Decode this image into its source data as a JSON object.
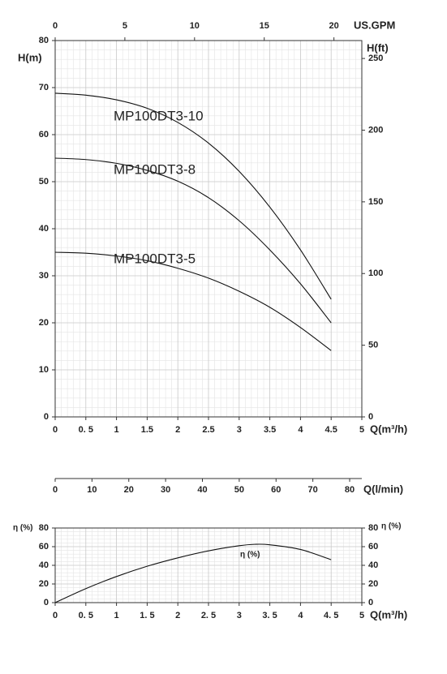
{
  "chart_data": [
    {
      "type": "line",
      "xlabel": "Q(m³/h)",
      "ylabel": "H(m)",
      "y2label": "H(ft)",
      "xlim": [
        0,
        5
      ],
      "xticks": [
        0,
        {
          "value": 0.5,
          "label": "0. 5"
        },
        1,
        1.5,
        2,
        2.5,
        3,
        3.5,
        4,
        4.5,
        5
      ],
      "ylim": [
        0,
        80
      ],
      "yticks": [
        0,
        10,
        20,
        30,
        40,
        50,
        60,
        70,
        80
      ],
      "y2lim": [
        0,
        262.5
      ],
      "y2ticks": [
        0,
        50,
        100,
        150,
        200,
        250
      ],
      "x2label": "US.GPM",
      "x2lim": [
        0,
        22
      ],
      "x2ticks": [
        0,
        5,
        10,
        15,
        20
      ],
      "x3label": "Q(l/min)",
      "x3lim": [
        0,
        83.3
      ],
      "x3ticks": [
        0,
        10,
        20,
        30,
        40,
        50,
        60,
        70,
        80
      ],
      "grid": true,
      "minor_grid": true,
      "x": [
        0,
        0.5,
        1,
        1.5,
        2,
        2.5,
        3,
        3.5,
        4,
        4.5
      ],
      "series": [
        {
          "name": "MP100DT3-10",
          "color": "#111111",
          "values": [
            68.8,
            68.4,
            67.4,
            65.6,
            62.6,
            58.2,
            52.2,
            44.6,
            35.5,
            25
          ]
        },
        {
          "name": "MP100DT3-8",
          "color": "#111111",
          "values": [
            55,
            54.7,
            53.9,
            52.4,
            50.1,
            46.6,
            41.7,
            35.5,
            28.3,
            20
          ]
        },
        {
          "name": "MP100DT3-5",
          "color": "#111111",
          "values": [
            35,
            34.8,
            34.2,
            33.2,
            31.6,
            29.5,
            26.7,
            23.3,
            19,
            14.1
          ]
        }
      ]
    },
    {
      "type": "line",
      "xlabel": "Q(m³/h)",
      "ylabel": "η (%)",
      "y2label": "η (%)",
      "xlim": [
        0,
        5
      ],
      "xticks": [
        0,
        {
          "value": 0.5,
          "label": "0. 5"
        },
        1,
        {
          "value": 1.5,
          "label": "1. 5"
        },
        2,
        {
          "value": 2.5,
          "label": "2. 5"
        },
        3,
        {
          "value": 3.5,
          "label": "3. 5"
        },
        4,
        {
          "value": 4.5,
          "label": "4. 5"
        },
        5
      ],
      "ylim": [
        0,
        80
      ],
      "yticks": [
        0,
        20,
        40,
        60,
        80
      ],
      "y2lim": [
        0,
        80
      ],
      "y2ticks": [
        0,
        20,
        40,
        60,
        80
      ],
      "grid": true,
      "minor_grid": true,
      "x": [
        0,
        0.5,
        1,
        1.5,
        2,
        2.5,
        3,
        3.25,
        3.5,
        4,
        4.5
      ],
      "series": [
        {
          "name": "η (%)",
          "color": "#111111",
          "values": [
            0,
            15,
            28,
            39,
            48,
            55.5,
            61,
            62.5,
            62,
            57,
            46
          ]
        }
      ]
    }
  ]
}
